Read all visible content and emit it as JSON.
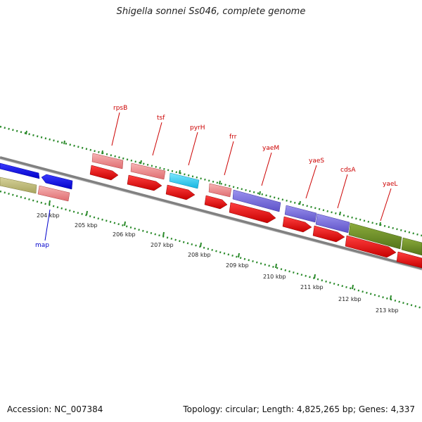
{
  "title": "Shigella sonnei Ss046, complete genome",
  "footer": {
    "accession": "Accession: NC_007384",
    "stats": "Topology: circular; Length: 4,825,265 bp; Genes: 4,337"
  },
  "colors": {
    "backbone": "#808080",
    "ticks": "#2a8a2a",
    "label_red": "#cc0000",
    "label_blue": "#0000cc"
  },
  "kbp_labels": [
    "204 kbp",
    "205 kbp",
    "206 kbp",
    "207 kbp",
    "208 kbp",
    "209 kbp",
    "210 kbp",
    "211 kbp",
    "212 kbp",
    "213 kbp"
  ],
  "gene_labels": [
    "rpsB",
    "tsf",
    "pyrH",
    "frr",
    "yaeM",
    "yaeS",
    "cdsA",
    "yaeL",
    "map"
  ]
}
